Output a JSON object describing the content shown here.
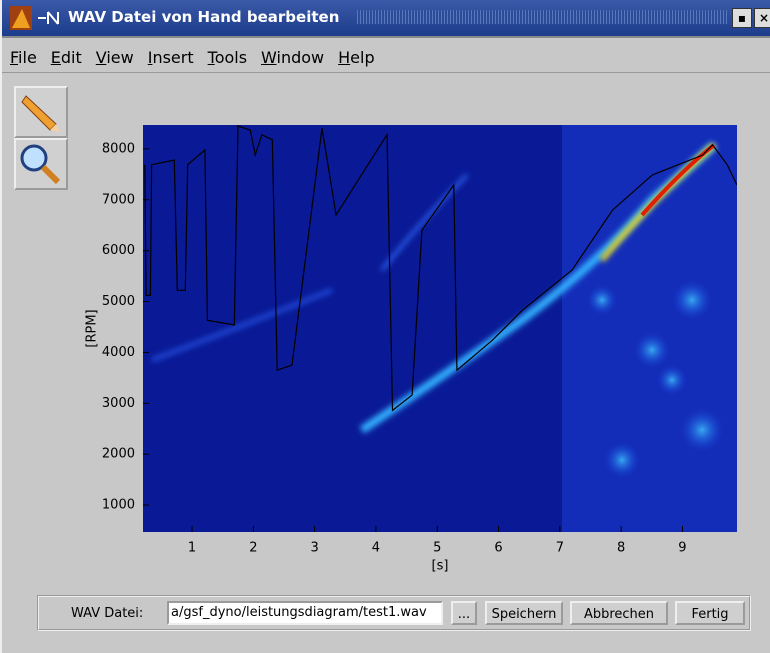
{
  "window": {
    "title": "WAV Datei von Hand bearbeiten"
  },
  "menu": [
    "File",
    "Edit",
    "View",
    "Insert",
    "Tools",
    "Window",
    "Help"
  ],
  "chart_data": {
    "type": "line",
    "xlabel": "[s]",
    "ylabel": "[RPM]",
    "x": [
      0.23,
      0.25,
      0.32,
      0.34,
      0.71,
      0.76,
      0.89,
      0.93,
      1.21,
      1.25,
      1.69,
      1.75,
      1.95,
      2.03,
      2.14,
      2.31,
      2.39,
      2.63,
      3.12,
      3.35,
      4.18,
      4.27,
      4.59,
      4.75,
      5.27,
      5.32,
      5.9,
      6.39,
      7.2,
      7.86,
      8.51,
      9.33,
      9.49,
      9.73,
      9.89
    ],
    "values": [
      7690,
      5120,
      5120,
      7690,
      7780,
      5220,
      5220,
      7690,
      7980,
      4630,
      4540,
      8450,
      8370,
      7880,
      8280,
      8180,
      3650,
      3750,
      8410,
      6700,
      8280,
      2860,
      3160,
      6400,
      7290,
      3650,
      4240,
      4830,
      5620,
      6800,
      7490,
      7880,
      8080,
      7690,
      7290
    ],
    "color": "#000000",
    "xlim": [
      0.2,
      9.89
    ],
    "ylim": [
      470,
      8470
    ],
    "xticks": [
      1,
      2,
      3,
      4,
      5,
      6,
      7,
      8,
      9
    ],
    "yticks": [
      1000,
      2000,
      3000,
      4000,
      5000,
      6000,
      7000,
      8000
    ]
  },
  "controls": {
    "file_label": "WAV Datei:",
    "file_path": "a/gsf_dyno/leistungsdiagram/test1.wav",
    "browse_button": "...",
    "buttons": [
      "Speichern",
      "Abbrechen",
      "Fertig"
    ]
  }
}
